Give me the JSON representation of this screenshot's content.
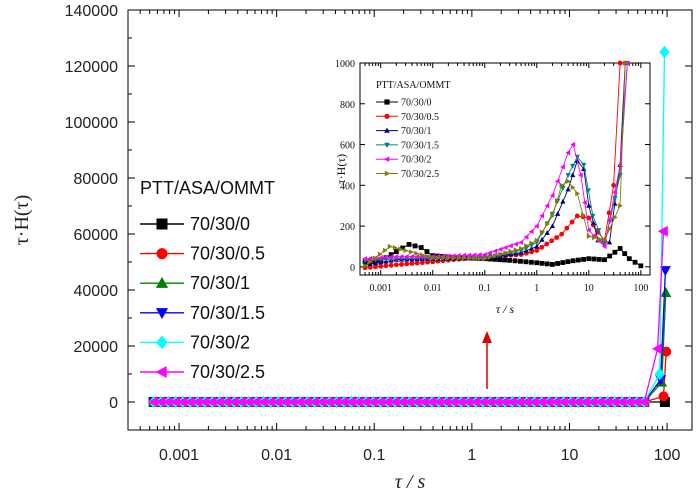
{
  "chart_data": [
    {
      "type": "line",
      "xlabel": "τ / s",
      "ylabel": "τ·H(τ)",
      "x_scale": "log",
      "xlim": [
        0.0003,
        180
      ],
      "ylim": [
        -10000,
        140000
      ],
      "x_ticks": [
        0.001,
        0.01,
        0.1,
        1,
        10,
        100
      ],
      "x_tick_labels": [
        "0.001",
        "0.01",
        "0.1",
        "1",
        "10",
        "100"
      ],
      "y_ticks": [
        0,
        20000,
        40000,
        60000,
        80000,
        100000,
        120000,
        140000
      ],
      "y_tick_labels": [
        "0",
        "20000",
        "40000",
        "60000",
        "80000",
        "100000",
        "120000",
        "140000"
      ],
      "legend_title": "PTT/ASA/OMMT",
      "legend_position": "left",
      "annotation": "red arrow pointing up",
      "series": [
        {
          "name": "70/30/0",
          "color": "#000000",
          "marker": "square",
          "end": [
            {
              "x": 95,
              "y": 0
            }
          ]
        },
        {
          "name": "70/30/0.5",
          "color": "#ff0000",
          "marker": "circle",
          "end": [
            {
              "x": 92,
              "y": 2000
            },
            {
              "x": 98,
              "y": 18000
            }
          ]
        },
        {
          "name": "70/30/1",
          "color": "#008000",
          "marker": "triangle-up",
          "end": [
            {
              "x": 88,
              "y": 7000
            },
            {
              "x": 97,
              "y": 39000
            }
          ]
        },
        {
          "name": "70/30/1.5",
          "color": "#0000ff",
          "marker": "triangle-down",
          "end": [
            {
              "x": 86,
              "y": 8000
            },
            {
              "x": 96,
              "y": 47000
            }
          ]
        },
        {
          "name": "70/30/2",
          "color": "#00ffff",
          "marker": "diamond",
          "end": [
            {
              "x": 84,
              "y": 10000
            },
            {
              "x": 94,
              "y": 125000
            }
          ]
        },
        {
          "name": "70/30/2.5",
          "color": "#ff00ff",
          "marker": "triangle-left",
          "end": [
            {
              "x": 80,
              "y": 19000
            },
            {
              "x": 92,
              "y": 61000
            }
          ]
        }
      ]
    },
    {
      "type": "line",
      "xlabel": "τ / s",
      "ylabel": "τ·H(τ)",
      "x_scale": "log",
      "xlim": [
        0.0004,
        150
      ],
      "ylim": [
        -40,
        1000
      ],
      "x_ticks": [
        0.001,
        0.01,
        0.1,
        1,
        10,
        100
      ],
      "x_tick_labels": [
        "0.001",
        "0.01",
        "0.1",
        "1",
        "10",
        "100"
      ],
      "y_ticks": [
        0,
        200,
        400,
        600,
        800,
        1000
      ],
      "y_tick_labels": [
        "0",
        "200",
        "400",
        "600",
        "800",
        "1000"
      ],
      "legend_title": "PTT/ASA/OMMT",
      "legend_position": "top-left",
      "series": [
        {
          "name": "70/30/0",
          "color": "#000000",
          "marker": "square",
          "points": [
            [
              0.0005,
              25
            ],
            [
              0.001,
              30
            ],
            [
              0.002,
              75
            ],
            [
              0.0035,
              110
            ],
            [
              0.006,
              95
            ],
            [
              0.01,
              55
            ],
            [
              0.03,
              45
            ],
            [
              0.1,
              40
            ],
            [
              0.3,
              32
            ],
            [
              1,
              20
            ],
            [
              2,
              12
            ],
            [
              5,
              30
            ],
            [
              10,
              40
            ],
            [
              20,
              35
            ],
            [
              40,
              90
            ],
            [
              60,
              40
            ],
            [
              100,
              5
            ]
          ]
        },
        {
          "name": "70/30/0.5",
          "color": "#ff0000",
          "marker": "circle",
          "points": [
            [
              0.0005,
              -5
            ],
            [
              0.002,
              10
            ],
            [
              0.01,
              25
            ],
            [
              0.1,
              50
            ],
            [
              0.5,
              60
            ],
            [
              1,
              80
            ],
            [
              3,
              160
            ],
            [
              6,
              250
            ],
            [
              10,
              240
            ],
            [
              15,
              170
            ],
            [
              20,
              130
            ],
            [
              30,
              400
            ],
            [
              40,
              1000
            ]
          ]
        },
        {
          "name": "70/30/1",
          "color": "#000080",
          "marker": "triangle-up",
          "points": [
            [
              0.0005,
              10
            ],
            [
              0.002,
              35
            ],
            [
              0.01,
              40
            ],
            [
              0.1,
              42
            ],
            [
              0.5,
              70
            ],
            [
              1,
              100
            ],
            [
              2,
              200
            ],
            [
              4,
              380
            ],
            [
              6,
              520
            ],
            [
              8,
              480
            ],
            [
              10,
              300
            ],
            [
              15,
              130
            ],
            [
              25,
              120
            ],
            [
              40,
              500
            ],
            [
              50,
              1000
            ]
          ]
        },
        {
          "name": "70/30/1.5",
          "color": "#008080",
          "marker": "triangle-down",
          "points": [
            [
              0.0005,
              30
            ],
            [
              0.002,
              40
            ],
            [
              0.01,
              45
            ],
            [
              0.1,
              45
            ],
            [
              0.5,
              80
            ],
            [
              1,
              120
            ],
            [
              2,
              260
            ],
            [
              4,
              450
            ],
            [
              6,
              540
            ],
            [
              8,
              500
            ],
            [
              12,
              250
            ],
            [
              20,
              110
            ],
            [
              40,
              450
            ],
            [
              55,
              1000
            ]
          ]
        },
        {
          "name": "70/30/2",
          "color": "#ff00ff",
          "marker": "triangle-left",
          "points": [
            [
              0.0005,
              40
            ],
            [
              0.002,
              50
            ],
            [
              0.01,
              50
            ],
            [
              0.1,
              60
            ],
            [
              0.5,
              120
            ],
            [
              1,
              200
            ],
            [
              2,
              350
            ],
            [
              4,
              560
            ],
            [
              5,
              600
            ],
            [
              7,
              450
            ],
            [
              10,
              180
            ],
            [
              20,
              100
            ],
            [
              40,
              500
            ],
            [
              55,
              1000
            ]
          ]
        },
        {
          "name": "70/30/2.5",
          "color": "#808000",
          "marker": "triangle-right",
          "points": [
            [
              0.0005,
              5
            ],
            [
              0.0015,
              100
            ],
            [
              0.003,
              80
            ],
            [
              0.01,
              45
            ],
            [
              0.1,
              40
            ],
            [
              0.5,
              90
            ],
            [
              1,
              130
            ],
            [
              2,
              250
            ],
            [
              3,
              400
            ],
            [
              4,
              420
            ],
            [
              6,
              360
            ],
            [
              10,
              150
            ],
            [
              20,
              130
            ],
            [
              40,
              300
            ],
            [
              50,
              1000
            ]
          ]
        }
      ]
    }
  ]
}
